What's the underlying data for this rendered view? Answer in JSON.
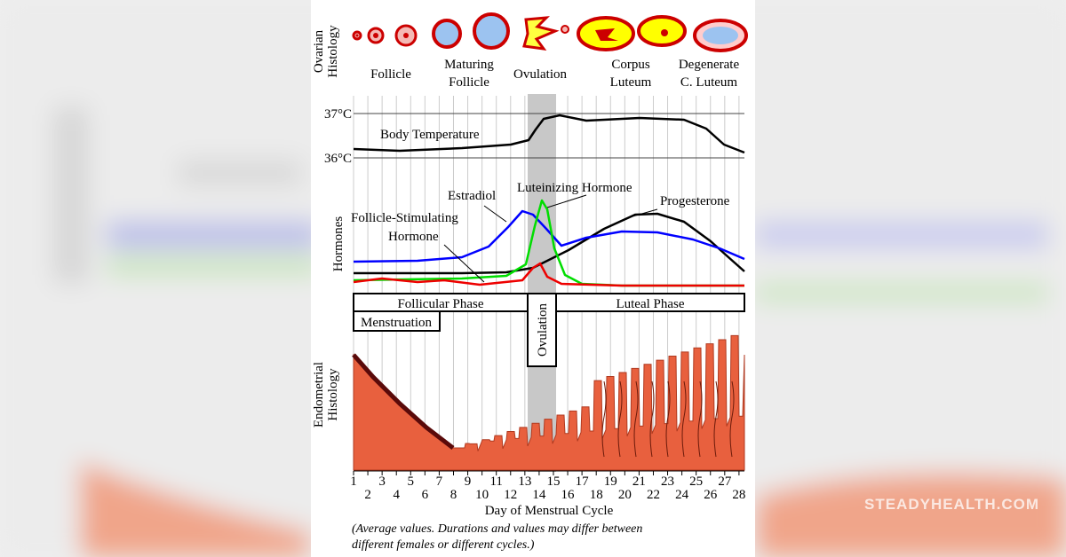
{
  "ovarian": {
    "axis_label": [
      "Ovarian",
      "Histology"
    ],
    "stages": [
      {
        "lines": [
          "Follicle"
        ]
      },
      {
        "lines": [
          "Maturing",
          "Follicle"
        ]
      },
      {
        "lines": [
          "Ovulation"
        ]
      },
      {
        "lines": [
          "Corpus",
          "Luteum"
        ]
      },
      {
        "lines": [
          "Degenerate",
          "C. Luteum"
        ]
      }
    ]
  },
  "temperature": {
    "ticks": [
      "37°C",
      "36°C"
    ],
    "label": "Body Temperature"
  },
  "hormones": {
    "axis_label": "Hormones",
    "estradiol": "Estradiol",
    "lh": "Luteinizing Hormone",
    "fsh": [
      "Follicle-Stimulating",
      "Hormone"
    ],
    "progesterone": "Progesterone"
  },
  "phases": {
    "follicular": "Follicular Phase",
    "luteal": "Luteal Phase",
    "menstruation": "Menstruation",
    "ovulation": "Ovulation"
  },
  "endometrium": {
    "axis_label": [
      "Endometrial",
      "Histology"
    ]
  },
  "days": [
    1,
    2,
    3,
    4,
    5,
    6,
    7,
    8,
    9,
    10,
    11,
    12,
    13,
    14,
    15,
    16,
    17,
    18,
    19,
    20,
    21,
    22,
    23,
    24,
    25,
    26,
    27,
    28
  ],
  "x_axis_label": "Day of Menstrual Cycle",
  "note": [
    "(Average values. Durations and values may differ between",
    "different females or different cycles.)"
  ],
  "watermark": "STEADYHEALTH.COM"
}
